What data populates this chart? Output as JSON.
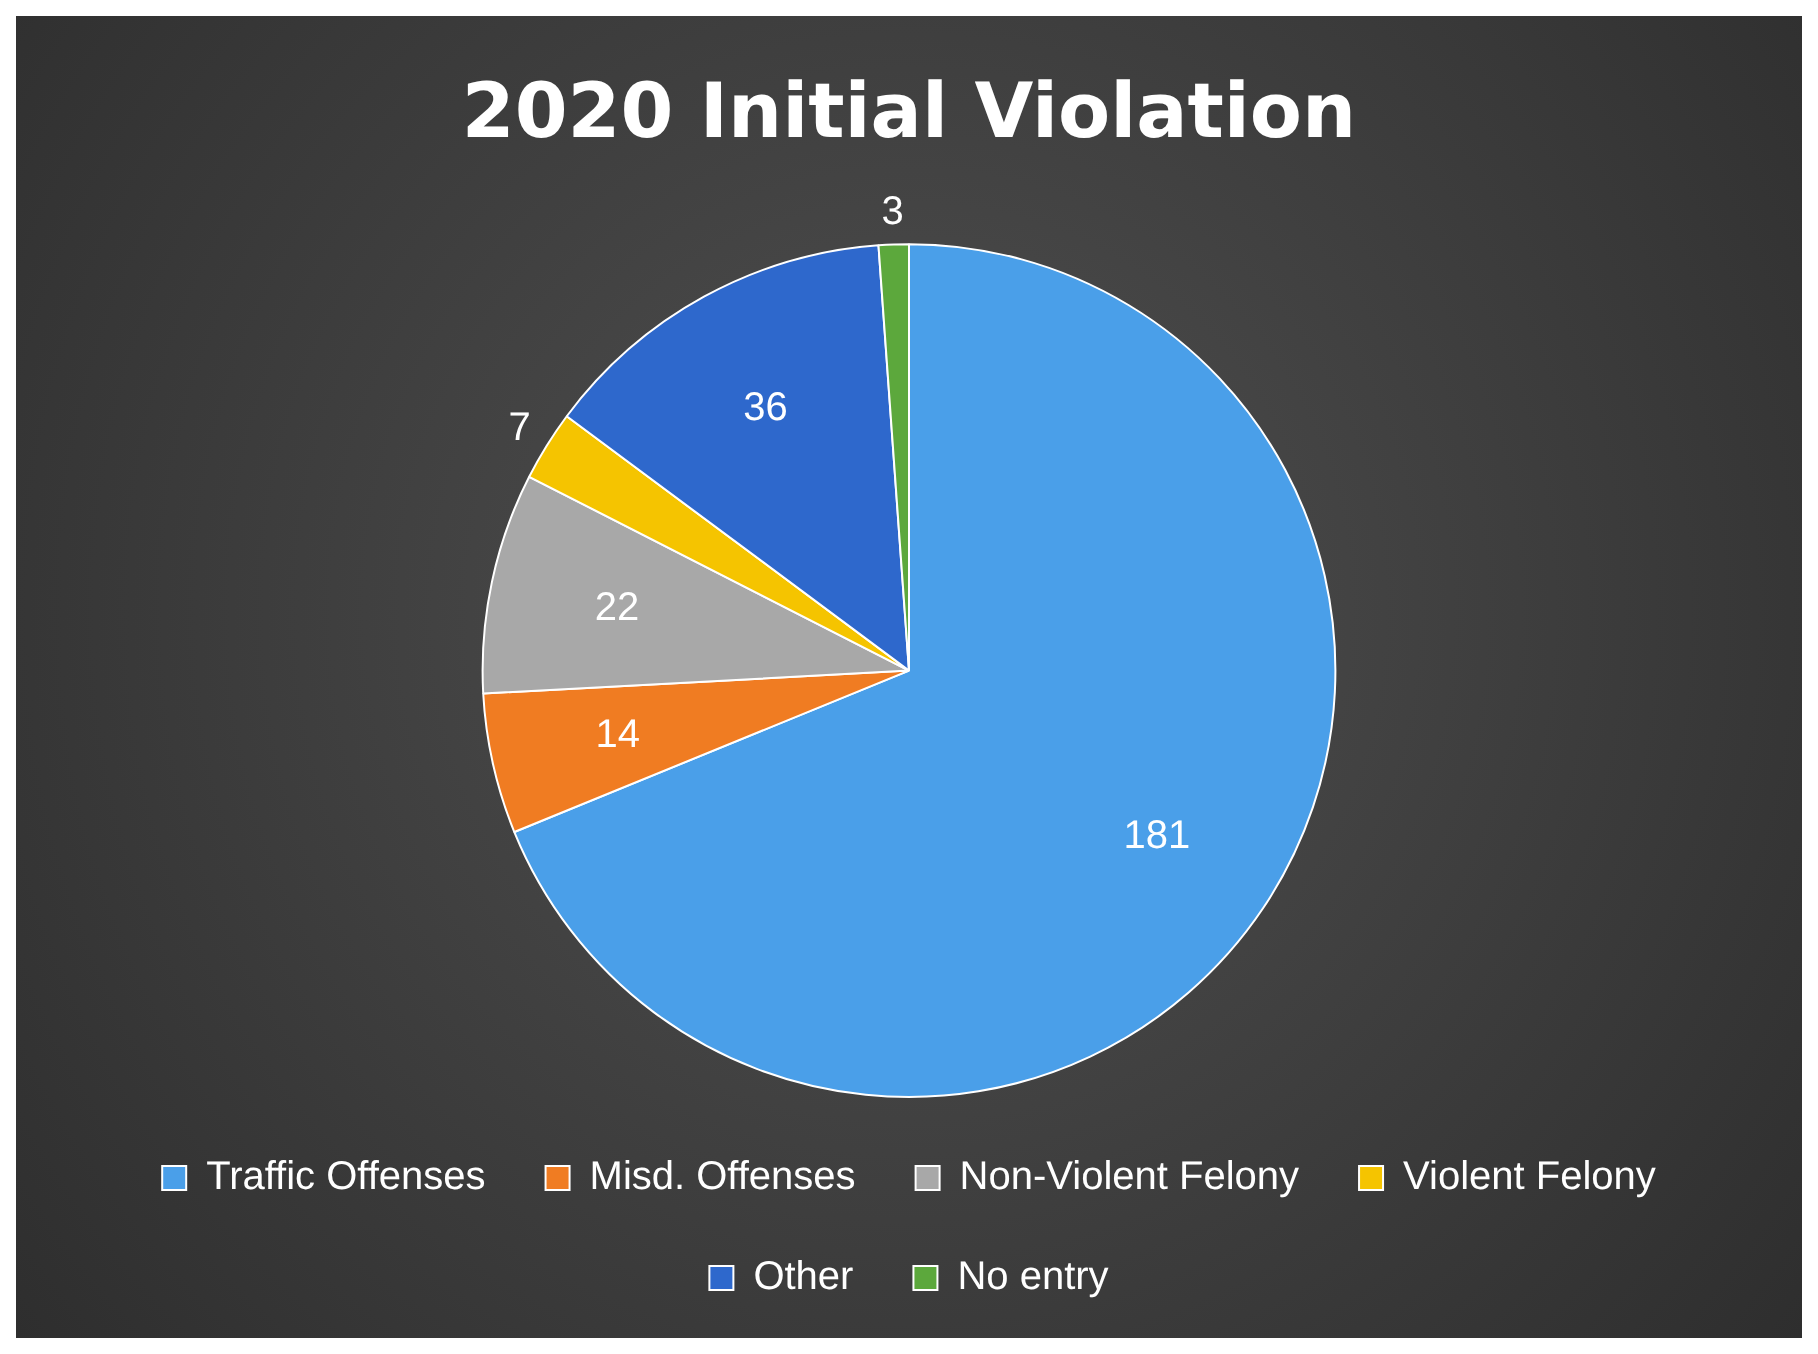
{
  "chart_data": {
    "type": "pie",
    "title": "2020 Initial Violation",
    "categories": [
      "Traffic Offenses",
      "Misd. Offenses",
      "Non-Violent Felony",
      "Violent Felony",
      "Other",
      "No entry"
    ],
    "values": [
      181,
      14,
      22,
      7,
      36,
      3
    ],
    "colors": [
      "#4a9fe9",
      "#f07c22",
      "#a8a8a8",
      "#f5c400",
      "#2e68cc",
      "#5ca83c"
    ],
    "data_labels": true,
    "legend": "bottom"
  }
}
